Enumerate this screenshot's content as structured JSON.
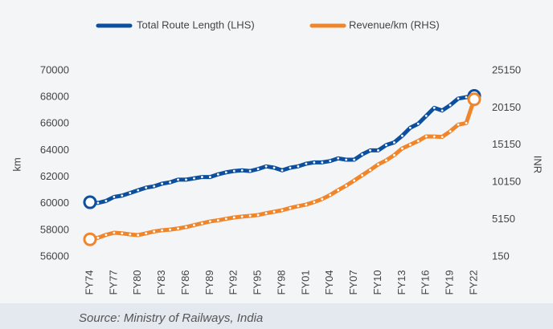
{
  "chart_data": {
    "type": "line",
    "categories": [
      "FY74",
      null,
      null,
      "FY77",
      null,
      null,
      "FY80",
      null,
      null,
      "FY83",
      null,
      null,
      "FY86",
      null,
      null,
      "FY89",
      null,
      null,
      "FY92",
      null,
      null,
      "FY95",
      null,
      null,
      "FY98",
      null,
      null,
      "FY01",
      null,
      null,
      "FY04",
      null,
      null,
      "FY07",
      null,
      null,
      "FY10",
      null,
      null,
      "FY13",
      null,
      null,
      "FY16",
      null,
      null,
      "FY19",
      null,
      null,
      "FY22"
    ],
    "series": [
      {
        "name": "Total Route Length (LHS)",
        "color": "#0c4f9e",
        "axis": "y",
        "values": [
          60100,
          60050,
          60200,
          60500,
          60600,
          60800,
          61000,
          61200,
          61300,
          61500,
          61600,
          61800,
          61800,
          61900,
          62000,
          62000,
          62200,
          62350,
          62450,
          62500,
          62450,
          62600,
          62800,
          62700,
          62500,
          62700,
          62800,
          63000,
          63100,
          63100,
          63200,
          63400,
          63300,
          63300,
          63700,
          64000,
          64000,
          64400,
          64600,
          65100,
          65700,
          66000,
          66600,
          67200,
          67000,
          67400,
          67900,
          68000,
          68100
        ]
      },
      {
        "name": "Revenue/km (RHS)",
        "color": "#f0862c",
        "axis": "y2",
        "values": [
          2500,
          2700,
          3100,
          3380,
          3300,
          3150,
          3060,
          3300,
          3550,
          3710,
          3800,
          3950,
          4140,
          4400,
          4650,
          4900,
          5050,
          5250,
          5430,
          5550,
          5650,
          5760,
          6000,
          6200,
          6400,
          6700,
          6950,
          7160,
          7500,
          7900,
          8450,
          9100,
          9700,
          10390,
          11100,
          11800,
          12550,
          13100,
          13800,
          14700,
          15200,
          15700,
          16320,
          16300,
          16250,
          17000,
          17900,
          18100,
          21300
        ]
      }
    ],
    "ylim": [
      56000,
      70000
    ],
    "yticks": [
      56000,
      58000,
      60000,
      62000,
      64000,
      66000,
      68000,
      70000
    ],
    "y2lim": [
      150,
      25150
    ],
    "y2ticks": [
      150,
      5150,
      10150,
      15150,
      20150,
      25150
    ],
    "y_label": "km",
    "y2_label": "INR",
    "source": "Source: Ministry of Railways, India"
  }
}
